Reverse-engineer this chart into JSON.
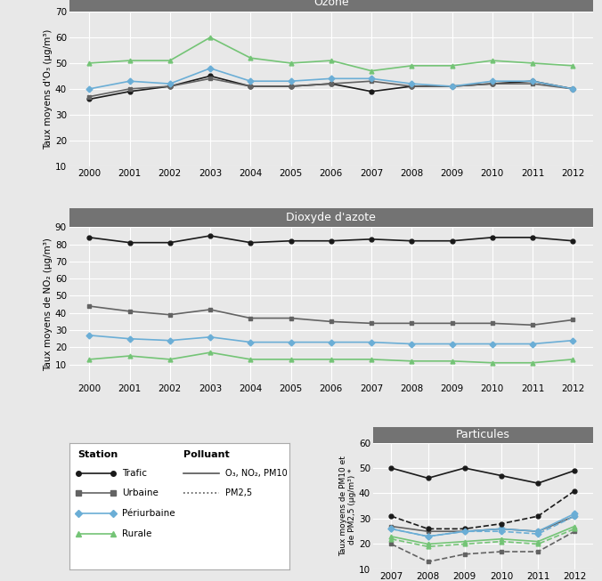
{
  "ozone": {
    "years": [
      2000,
      2001,
      2002,
      2003,
      2004,
      2005,
      2006,
      2007,
      2008,
      2009,
      2010,
      2011,
      2012
    ],
    "trafic": [
      36,
      39,
      41,
      45,
      41,
      41,
      42,
      39,
      41,
      41,
      42,
      43,
      40
    ],
    "urbaine": [
      37,
      40,
      41,
      44,
      41,
      41,
      42,
      43,
      41,
      41,
      42,
      42,
      40
    ],
    "periurbaine": [
      40,
      43,
      42,
      48,
      43,
      43,
      44,
      44,
      42,
      41,
      43,
      43,
      40
    ],
    "rurale": [
      50,
      51,
      51,
      60,
      52,
      50,
      51,
      47,
      49,
      49,
      51,
      50,
      49
    ],
    "title": "Ozone",
    "ylabel": "Taux moyens d'O₃ (μg/m³)",
    "ylim": [
      10,
      70
    ],
    "yticks": [
      10,
      20,
      30,
      40,
      50,
      60,
      70
    ]
  },
  "no2": {
    "years": [
      2000,
      2001,
      2002,
      2003,
      2004,
      2005,
      2006,
      2007,
      2008,
      2009,
      2010,
      2011,
      2012
    ],
    "trafic": [
      84,
      81,
      81,
      85,
      81,
      82,
      82,
      83,
      82,
      82,
      84,
      84,
      82
    ],
    "urbaine": [
      44,
      41,
      39,
      42,
      37,
      37,
      35,
      34,
      34,
      34,
      34,
      33,
      36
    ],
    "periurbaine": [
      27,
      25,
      24,
      26,
      23,
      23,
      23,
      23,
      22,
      22,
      22,
      22,
      24
    ],
    "rurale": [
      13,
      15,
      13,
      17,
      13,
      13,
      13,
      13,
      12,
      12,
      11,
      11,
      13
    ],
    "title": "Dioxyde d'azote",
    "ylabel": "Taux moyens de NO₂ (μg/m³)",
    "ylim": [
      0,
      90
    ],
    "yticks": [
      10,
      20,
      30,
      40,
      50,
      60,
      70,
      80,
      90
    ]
  },
  "pm": {
    "years": [
      2007,
      2008,
      2009,
      2010,
      2011,
      2012
    ],
    "trafic_solid": [
      50,
      46,
      50,
      47,
      44,
      49
    ],
    "urbaine_solid": [
      27,
      25,
      25,
      26,
      25,
      31
    ],
    "periurbaine_solid": [
      26,
      23,
      25,
      26,
      25,
      32
    ],
    "rurale_solid": [
      23,
      20,
      21,
      22,
      21,
      27
    ],
    "trafic_dashed": [
      31,
      26,
      26,
      28,
      31,
      41
    ],
    "urbaine_dashed": [
      20,
      13,
      16,
      17,
      17,
      25
    ],
    "periurbaine_dashed": [
      26,
      23,
      25,
      25,
      24,
      31
    ],
    "rurale_dashed": [
      22,
      19,
      20,
      21,
      20,
      26
    ],
    "title": "Particules",
    "ylabel": "Taux moyens de PM10 et\nde PM2,5 (μg/m³) *",
    "ylim": [
      10,
      60
    ],
    "yticks": [
      10,
      20,
      30,
      40,
      50,
      60
    ]
  },
  "colors": {
    "trafic": "#1a1a1a",
    "urbaine": "#636363",
    "periurbaine": "#6baed6",
    "rurale": "#74c476"
  },
  "bg_panel": "#e8e8e8",
  "bg_figure": "#e8e8e8",
  "title_bg": "#737373",
  "title_fg": "white"
}
